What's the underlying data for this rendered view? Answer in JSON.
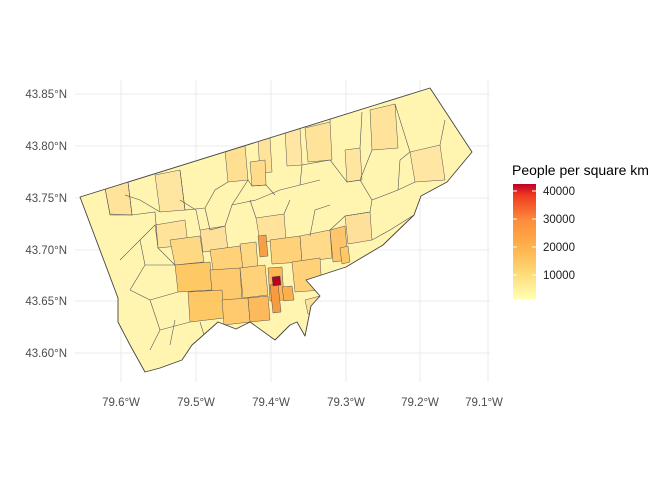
{
  "chart_data": {
    "type": "choropleth",
    "xaxis": {
      "ticks": [
        "79.6°W",
        "79.5°W",
        "79.4°W",
        "79.3°W",
        "79.2°W",
        "79.1°W"
      ],
      "values": [
        -79.6,
        -79.5,
        -79.4,
        -79.3,
        -79.2,
        -79.1
      ]
    },
    "yaxis": {
      "ticks": [
        "43.60°N",
        "43.65°N",
        "43.70°N",
        "43.75°N",
        "43.80°N",
        "43.85°N"
      ],
      "values": [
        43.6,
        43.65,
        43.7,
        43.75,
        43.8,
        43.85
      ]
    },
    "grid": true,
    "legend": {
      "title": "People per square km",
      "placement": "right",
      "ticks": [
        {
          "label": "40000",
          "value": 40000
        },
        {
          "label": "30000",
          "value": 30000
        },
        {
          "label": "20000",
          "value": 20000
        },
        {
          "label": "10000",
          "value": 10000
        }
      ],
      "min": 0,
      "max": 44000,
      "colors": [
        "#ffffb2",
        "#fed976",
        "#feb24c",
        "#fd8d3c",
        "#f03b20",
        "#bd0026"
      ]
    },
    "boundary_color": "#333333"
  }
}
